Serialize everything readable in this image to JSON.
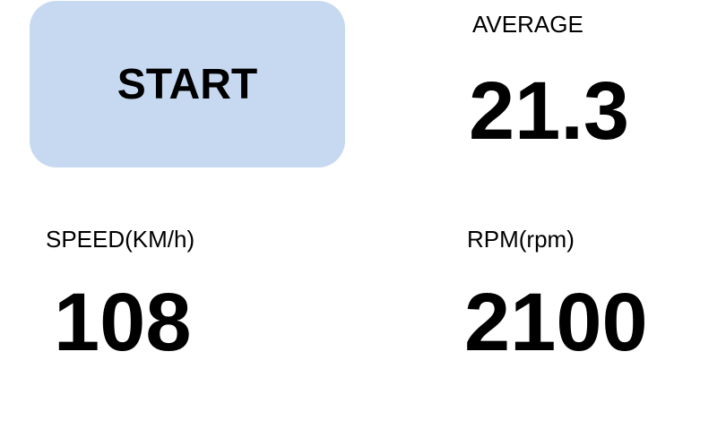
{
  "start_button": {
    "label": "START",
    "color": "#c6d9f0"
  },
  "average": {
    "label": "AVERAGE",
    "value": "21.3"
  },
  "speed": {
    "label": "SPEED(KM/h)",
    "value": "108"
  },
  "rpm": {
    "label": "RPM(rpm)",
    "value": "2100"
  }
}
